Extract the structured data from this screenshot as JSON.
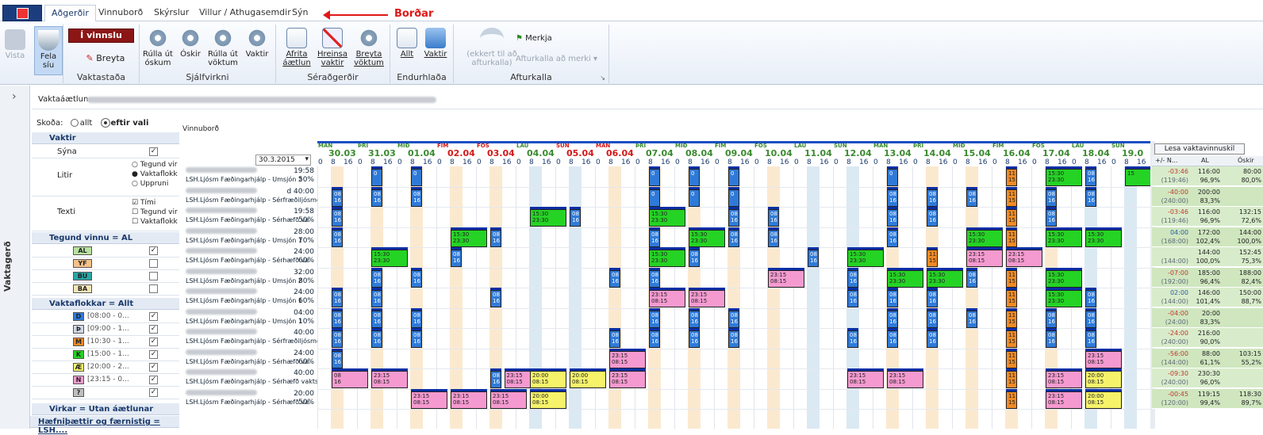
{
  "tabs": [
    "Aðgerðir",
    "Vinnuborð",
    "Skýrslur",
    "Villur / Athugasemdir",
    "Sýn"
  ],
  "annotation": "Borðar",
  "ribbon": {
    "vista": "Vista",
    "fela": "Fela\nsíu",
    "invinnslu": "Í vinnslu",
    "breyta": "Breyta",
    "vaktastada": "Vaktastaða",
    "rulla_oskum": "Rúlla út\nóskum",
    "oskir": "Óskir",
    "rulla_voktum": "Rúlla út\nvöktum",
    "vaktir": "Vaktir",
    "sjalfvirkni": "Sjálfvirkni",
    "afrita": "Afrita\náætlun",
    "hreinsa": "Hreinsa\nvaktir",
    "breyta_voktum": "Breyta\nvöktum",
    "seradgerdir": "Séraðgerðir",
    "allt": "Allt",
    "vaktir2": "Vaktir",
    "endurhlada": "Endurhlaða",
    "ekkert": "(ekkert til að\nafturkalla)",
    "merkja": "Merkja",
    "afturkalla_merki": "Afturkalla að merki",
    "afturkalla": "Afturkalla"
  },
  "vaktaaaetlun": "Vaktaáætlun:",
  "skoda": {
    "label": "Skoða:",
    "opt1": "allt",
    "opt2": "eftir vali"
  },
  "panel": {
    "vaktir": "Vaktir",
    "syna": "Sýna",
    "litir": "Litir",
    "texti": "Texti",
    "litir_opts": [
      "Tegund vir",
      "Vaktaflokk",
      "Uppruni"
    ],
    "texti_opts": [
      "Tími",
      "Tegund vir",
      "Vaktaflokk"
    ],
    "tegund": "Tegund vinnu = AL",
    "tegund_codes": [
      "AL",
      "YF",
      "BU",
      "BA"
    ],
    "vaktaflokkar": "Vaktaflokkar = Allt",
    "vf_codes": [
      "D",
      "Þ",
      "M",
      "K",
      "Æ",
      "N",
      "?"
    ],
    "vf_times": [
      "[08:00 - 0...",
      "[09:00 - 1...",
      "[10:30 - 1...",
      "[15:00 - 1...",
      "[20:00 - 2...",
      "[23:15 - 0...",
      ""
    ],
    "virkar": "Virkar = Utan áætlunar",
    "haefni": "Hæfniþættir og færnistig = LSH...."
  },
  "vinnubord": "Vinnuborð",
  "date_select": "30.3.2015",
  "lesa": "Lesa vaktavinnuskil",
  "stat_headers": [
    "+/- N...",
    "AL",
    "Óskir"
  ],
  "days": [
    {
      "w": "MÁN",
      "d": "30.03",
      "c": "#3a8a2e"
    },
    {
      "w": "ÞRI",
      "d": "31.03",
      "c": "#3a8a2e"
    },
    {
      "w": "MIÐ",
      "d": "01.04",
      "c": "#3a8a2e"
    },
    {
      "w": "FIM",
      "d": "02.04",
      "c": "#d41818"
    },
    {
      "w": "FÖS",
      "d": "03.04",
      "c": "#d41818"
    },
    {
      "w": "LAU",
      "d": "04.04",
      "c": "#3a8a2e"
    },
    {
      "w": "SUN",
      "d": "05.04",
      "c": "#d41818"
    },
    {
      "w": "MÁN",
      "d": "06.04",
      "c": "#d41818"
    },
    {
      "w": "ÞRI",
      "d": "07.04",
      "c": "#3a8a2e"
    },
    {
      "w": "MIÐ",
      "d": "08.04",
      "c": "#3a8a2e"
    },
    {
      "w": "FIM",
      "d": "09.04",
      "c": "#3a8a2e"
    },
    {
      "w": "FÖS",
      "d": "10.04",
      "c": "#3a8a2e"
    },
    {
      "w": "LAU",
      "d": "11.04",
      "c": "#3a8a2e"
    },
    {
      "w": "SUN",
      "d": "12.04",
      "c": "#3a8a2e"
    },
    {
      "w": "MÁN",
      "d": "13.04",
      "c": "#3a8a2e"
    },
    {
      "w": "ÞRI",
      "d": "14.04",
      "c": "#3a8a2e"
    },
    {
      "w": "MIÐ",
      "d": "15.04",
      "c": "#3a8a2e"
    },
    {
      "w": "FIM",
      "d": "16.04",
      "c": "#3a8a2e"
    },
    {
      "w": "FÖS",
      "d": "17.04",
      "c": "#3a8a2e"
    },
    {
      "w": "LAU",
      "d": "18.04",
      "c": "#3a8a2e"
    },
    {
      "w": "SUN",
      "d": "19.0",
      "c": "#3a8a2e"
    }
  ],
  "hours": [
    "0",
    "8",
    "16"
  ],
  "rows": [
    {
      "u": "LSH.Ljósm Fæðingarhjálp - Umsjón 2",
      "h": "19:58",
      "p": "50%",
      "s": [
        "-03:46",
        "(119:46)",
        "116:00",
        "96,9%",
        "80:00",
        "80,0%"
      ]
    },
    {
      "u": "LSH.Ljósm Fæðingarhjálp - Sérfræðiljósmóðir",
      "h": "d 40:00",
      "p": "",
      "s": [
        "-40:00",
        "(240:00)",
        "200:00",
        "83,3%",
        "",
        ""
      ]
    },
    {
      "u": "LSH.Ljósm Fæðingarhjálp - Sérhæfð va",
      "h": "19:58",
      "p": "50%",
      "s": [
        "-03:46",
        "(119:46)",
        "116:00",
        "96,9%",
        "132:15",
        "72,6%"
      ]
    },
    {
      "u": "LSH.Ljósm Fæðingarhjálp - Umsjón 1",
      "h": "28:00",
      "p": "70%",
      "s": [
        "04:00",
        "(168:00)",
        "172:00",
        "102,4%",
        "144:00",
        "100,0%"
      ]
    },
    {
      "u": "LSH.Ljósm Fæðingarhjálp - Sérhæfð va",
      "h": "24:00",
      "p": "60%",
      "s": [
        "",
        "(144:00)",
        "144:00",
        "100,0%",
        "152:45",
        "75,3%"
      ]
    },
    {
      "u": "LSH.Ljósm Fæðingarhjálp - Umsjón 2",
      "h": "32:00",
      "p": "80%",
      "s": [
        "-07:00",
        "(192:00)",
        "185:00",
        "96,4%",
        "188:00",
        "82,4%"
      ]
    },
    {
      "u": "LSH.Ljósm Fæðingarhjálp - Umsjón 1",
      "h": "24:00",
      "p": "60%",
      "s": [
        "02:00",
        "(144:00)",
        "146:00",
        "101,4%",
        "150:00",
        "88,7%"
      ]
    },
    {
      "u": "LSH.Ljósm Fæðingarhjálp - Umsjón 1",
      "h": "04:00",
      "p": "10%",
      "s": [
        "-04:00",
        "(24:00)",
        "20:00",
        "83,3%",
        "",
        ""
      ]
    },
    {
      "u": "LSH.Ljósm Fæðingarhjálp - Sérfræðiljósmóðir",
      "h": "40:00",
      "p": "",
      "s": [
        "-24:00",
        "(240:00)",
        "216:00",
        "90,0%",
        "",
        ""
      ]
    },
    {
      "u": "LSH.Ljósm Fæðingarhjálp - Sérhæfð va",
      "h": "24:00",
      "p": "60%",
      "s": [
        "-56:00",
        "(144:00)",
        "88:00",
        "61,1%",
        "103:15",
        "55,2%"
      ]
    },
    {
      "u": "LSH.Ljósm Fæðingarhjálp - Sérhæfð vaktstjórn",
      "h": "40:00",
      "p": "",
      "s": [
        "-09:30",
        "(240:00)",
        "230:30",
        "96,0%",
        "",
        ""
      ]
    },
    {
      "u": "LSH.Ljósm Fæðingarhjálp - Sérhæfð va",
      "h": "20:00",
      "p": "50%",
      "s": [
        "-00:45",
        "(120:00)",
        "119:15",
        "99,4%",
        "118:30",
        "89,7%"
      ]
    }
  ],
  "shifts": [
    {
      "r": 0,
      "d": 1,
      "t": "0\n",
      "k": "D"
    },
    {
      "r": 0,
      "d": 2,
      "t": "0\n",
      "k": "D"
    },
    {
      "r": 0,
      "d": 8,
      "t": "0\n",
      "k": "D"
    },
    {
      "r": 0,
      "d": 9,
      "t": "0\n",
      "k": "D"
    },
    {
      "r": 0,
      "d": 10,
      "t": "0\n",
      "k": "D"
    },
    {
      "r": 0,
      "d": 14,
      "t": "0\n",
      "k": "D"
    },
    {
      "r": 0,
      "d": 17,
      "t": "11\n15",
      "k": "M"
    },
    {
      "r": 0,
      "d": 18,
      "t": "15:30\n23:30",
      "k": "K"
    },
    {
      "r": 0,
      "d": 19,
      "t": "08\n16",
      "k": "D"
    },
    {
      "r": 0,
      "d": 20,
      "t": "15",
      "k": "K"
    },
    {
      "r": 1,
      "d": 0,
      "t": "08\n16",
      "k": "D"
    },
    {
      "r": 1,
      "d": 1,
      "t": "08\n16",
      "k": "D"
    },
    {
      "r": 1,
      "d": 2,
      "t": "08\n16",
      "k": "D"
    },
    {
      "r": 1,
      "d": 8,
      "t": "0\n",
      "k": "D"
    },
    {
      "r": 1,
      "d": 9,
      "t": "0\n",
      "k": "D"
    },
    {
      "r": 1,
      "d": 10,
      "t": "0\n",
      "k": "D"
    },
    {
      "r": 1,
      "d": 14,
      "t": "08\n16",
      "k": "D"
    },
    {
      "r": 1,
      "d": 15,
      "t": "08\n16",
      "k": "D"
    },
    {
      "r": 1,
      "d": 16,
      "t": "08\n16",
      "k": "D"
    },
    {
      "r": 1,
      "d": 17,
      "t": "11\n15",
      "k": "M"
    },
    {
      "r": 1,
      "d": 18,
      "t": "08\n16",
      "k": "D"
    },
    {
      "r": 1,
      "d": 19,
      "t": "08\n16",
      "k": "D"
    },
    {
      "r": 2,
      "d": 0,
      "t": "08\n16",
      "k": "D"
    },
    {
      "r": 2,
      "d": 5,
      "t": "15:30\n23:30",
      "k": "K"
    },
    {
      "r": 2,
      "d": 6,
      "t": "08\n16",
      "k": "D"
    },
    {
      "r": 2,
      "d": 8,
      "t": "15:30\n23:30",
      "k": "K"
    },
    {
      "r": 2,
      "d": 10,
      "t": "08\n16",
      "k": "D"
    },
    {
      "r": 2,
      "d": 11,
      "t": "08\n16",
      "k": "D"
    },
    {
      "r": 2,
      "d": 14,
      "t": "08\n16",
      "k": "D"
    },
    {
      "r": 2,
      "d": 15,
      "t": "08\n16",
      "k": "D"
    },
    {
      "r": 2,
      "d": 17,
      "t": "11\n15",
      "k": "M"
    },
    {
      "r": 2,
      "d": 18,
      "t": "08\n16",
      "k": "D"
    },
    {
      "r": 3,
      "d": 0,
      "t": "08\n16",
      "k": "D"
    },
    {
      "r": 3,
      "d": 3,
      "t": "15:30\n23:30",
      "k": "K"
    },
    {
      "r": 3,
      "d": 4,
      "t": "08\n16",
      "k": "D"
    },
    {
      "r": 3,
      "d": 8,
      "t": "08\n16",
      "k": "D"
    },
    {
      "r": 3,
      "d": 9,
      "t": "15:30\n23:30",
      "k": "K"
    },
    {
      "r": 3,
      "d": 10,
      "t": "08\n16",
      "k": "D"
    },
    {
      "r": 3,
      "d": 11,
      "t": "08\n16",
      "k": "D"
    },
    {
      "r": 3,
      "d": 14,
      "t": "08\n16",
      "k": "D"
    },
    {
      "r": 3,
      "d": 16,
      "t": "15:30\n23:30",
      "k": "K"
    },
    {
      "r": 3,
      "d": 17,
      "t": "11\n15",
      "k": "M"
    },
    {
      "r": 3,
      "d": 18,
      "t": "15:30\n23:30",
      "k": "K"
    },
    {
      "r": 3,
      "d": 19,
      "t": "15:30\n23:30",
      "k": "K"
    },
    {
      "r": 4,
      "d": 1,
      "t": "15:30\n23:30",
      "k": "K"
    },
    {
      "r": 4,
      "d": 3,
      "t": "08\n16",
      "k": "D"
    },
    {
      "r": 4,
      "d": 8,
      "t": "15:30\n23:30",
      "k": "K"
    },
    {
      "r": 4,
      "d": 9,
      "t": "08\n16",
      "k": "D"
    },
    {
      "r": 4,
      "d": 12,
      "t": "08\n16",
      "k": "D"
    },
    {
      "r": 4,
      "d": 13,
      "t": "15:30\n23:30",
      "k": "K"
    },
    {
      "r": 4,
      "d": 15,
      "t": "11\n15",
      "k": "M"
    },
    {
      "r": 4,
      "d": 16,
      "t": "23:15\n08:15",
      "k": "N"
    },
    {
      "r": 4,
      "d": 17,
      "t": "23:15\n08:15",
      "k": "N"
    },
    {
      "r": 5,
      "d": 1,
      "t": "08\n16",
      "k": "D"
    },
    {
      "r": 5,
      "d": 2,
      "t": "08\n16",
      "k": "D"
    },
    {
      "r": 5,
      "d": 7,
      "t": "08\n16",
      "k": "D"
    },
    {
      "r": 5,
      "d": 8,
      "t": "08\n16",
      "k": "D"
    },
    {
      "r": 5,
      "d": 11,
      "t": "23:15\n08:15",
      "k": "N"
    },
    {
      "r": 5,
      "d": 13,
      "t": "08\n16",
      "k": "D"
    },
    {
      "r": 5,
      "d": 14,
      "t": "15:30\n23:30",
      "k": "K"
    },
    {
      "r": 5,
      "d": 15,
      "t": "15:30\n23:30",
      "k": "K"
    },
    {
      "r": 5,
      "d": 16,
      "t": "08\n16",
      "k": "D"
    },
    {
      "r": 5,
      "d": 17,
      "t": "11\n15",
      "k": "M"
    },
    {
      "r": 5,
      "d": 18,
      "t": "15:30\n23:30",
      "k": "K"
    },
    {
      "r": 6,
      "d": 0,
      "t": "08\n16",
      "k": "D"
    },
    {
      "r": 6,
      "d": 1,
      "t": "08\n16",
      "k": "D"
    },
    {
      "r": 6,
      "d": 4,
      "t": "08\n16",
      "k": "D"
    },
    {
      "r": 6,
      "d": 8,
      "t": "23:15\n08:15",
      "k": "N"
    },
    {
      "r": 6,
      "d": 9,
      "t": "23:15\n08:15",
      "k": "N"
    },
    {
      "r": 6,
      "d": 13,
      "t": "08\n16",
      "k": "D"
    },
    {
      "r": 6,
      "d": 14,
      "t": "08\n16",
      "k": "D"
    },
    {
      "r": 6,
      "d": 15,
      "t": "08\n16",
      "k": "D"
    },
    {
      "r": 6,
      "d": 17,
      "t": "11\n15",
      "k": "M"
    },
    {
      "r": 6,
      "d": 18,
      "t": "15:30\n23:30",
      "k": "K"
    },
    {
      "r": 6,
      "d": 19,
      "t": "08\n16",
      "k": "D"
    },
    {
      "r": 7,
      "d": 0,
      "t": "08\n16",
      "k": "D"
    },
    {
      "r": 7,
      "d": 1,
      "t": "08\n16",
      "k": "D"
    },
    {
      "r": 7,
      "d": 2,
      "t": "08\n16",
      "k": "D"
    },
    {
      "r": 7,
      "d": 8,
      "t": "08\n16",
      "k": "D"
    },
    {
      "r": 7,
      "d": 9,
      "t": "08\n16",
      "k": "D"
    },
    {
      "r": 7,
      "d": 10,
      "t": "08\n16",
      "k": "D"
    },
    {
      "r": 7,
      "d": 14,
      "t": "08\n16",
      "k": "D"
    },
    {
      "r": 7,
      "d": 15,
      "t": "08\n16",
      "k": "D"
    },
    {
      "r": 7,
      "d": 16,
      "t": "08\n16",
      "k": "D"
    },
    {
      "r": 7,
      "d": 17,
      "t": "11\n15",
      "k": "M"
    },
    {
      "r": 7,
      "d": 18,
      "t": "08\n16",
      "k": "D"
    },
    {
      "r": 7,
      "d": 19,
      "t": "08\n16",
      "k": "D"
    },
    {
      "r": 8,
      "d": 0,
      "t": "08\n16",
      "k": "D"
    },
    {
      "r": 8,
      "d": 1,
      "t": "08\n16",
      "k": "D"
    },
    {
      "r": 8,
      "d": 2,
      "t": "08\n16",
      "k": "D"
    },
    {
      "r": 8,
      "d": 7,
      "t": "08\n16",
      "k": "D"
    },
    {
      "r": 8,
      "d": 8,
      "t": "08\n16",
      "k": "D"
    },
    {
      "r": 8,
      "d": 9,
      "t": "08\n16",
      "k": "D"
    },
    {
      "r": 8,
      "d": 10,
      "t": "08\n16",
      "k": "D"
    },
    {
      "r": 8,
      "d": 13,
      "t": "08\n16",
      "k": "D"
    },
    {
      "r": 8,
      "d": 14,
      "t": "08\n16",
      "k": "D"
    },
    {
      "r": 8,
      "d": 15,
      "t": "08\n16",
      "k": "D"
    },
    {
      "r": 8,
      "d": 17,
      "t": "11\n15",
      "k": "M"
    },
    {
      "r": 8,
      "d": 18,
      "t": "08\n16",
      "k": "D"
    },
    {
      "r": 8,
      "d": 19,
      "t": "08\n16",
      "k": "D"
    },
    {
      "r": 9,
      "d": 0,
      "t": "08\n16",
      "k": "D"
    },
    {
      "r": 9,
      "d": 7,
      "t": "23:15\n08:15",
      "k": "N"
    },
    {
      "r": 9,
      "d": 17,
      "t": "11\n15",
      "k": "M"
    },
    {
      "r": 9,
      "d": 19,
      "t": "23:15\n08:15",
      "k": "N"
    },
    {
      "r": 10,
      "d": 0,
      "t": "08\n16",
      "k": "N"
    },
    {
      "r": 10,
      "d": 1,
      "t": "23:15\n08:15",
      "k": "N"
    },
    {
      "r": 10,
      "d": 4,
      "t": "08\n16",
      "k": "D"
    },
    {
      "r": 10,
      "d": 4.35,
      "t": "23:15\n08:15",
      "k": "N"
    },
    {
      "r": 10,
      "d": 5,
      "t": "20:00\n08:15",
      "k": "Y"
    },
    {
      "r": 10,
      "d": 6,
      "t": "20:00\n08:15",
      "k": "Y"
    },
    {
      "r": 10,
      "d": 7,
      "t": "23:15\n08:15",
      "k": "N"
    },
    {
      "r": 10,
      "d": 13,
      "t": "23:15\n08:15",
      "k": "N"
    },
    {
      "r": 10,
      "d": 14,
      "t": "23:15\n08:15",
      "k": "N"
    },
    {
      "r": 10,
      "d": 17,
      "t": "11\n15",
      "k": "M"
    },
    {
      "r": 10,
      "d": 18,
      "t": "23:15\n08:15",
      "k": "N"
    },
    {
      "r": 10,
      "d": 19,
      "t": "20:00\n08:15",
      "k": "Y"
    },
    {
      "r": 11,
      "d": 2,
      "t": "23:15\n08:15",
      "k": "N"
    },
    {
      "r": 11,
      "d": 3,
      "t": "23:15\n08:15",
      "k": "N"
    },
    {
      "r": 11,
      "d": 4,
      "t": "23:15\n08:15",
      "k": "N"
    },
    {
      "r": 11,
      "d": 5,
      "t": "20:00\n08:15",
      "k": "Y"
    },
    {
      "r": 11,
      "d": 17,
      "t": "11\n15",
      "k": "M"
    },
    {
      "r": 11,
      "d": 18,
      "t": "23:15\n08:15",
      "k": "N"
    },
    {
      "r": 11,
      "d": 19,
      "t": "20:00\n08:15",
      "k": "Y"
    }
  ],
  "colors": {
    "D": "#2f7ad8",
    "M": "#f08a24",
    "K": "#25d325",
    "N": "#f59ad0",
    "Y": "#f6f36a",
    "weekend": "#fbe9cf",
    "stat_neg": "#d8eccb",
    "stat_pos": "#cfe6bf"
  }
}
